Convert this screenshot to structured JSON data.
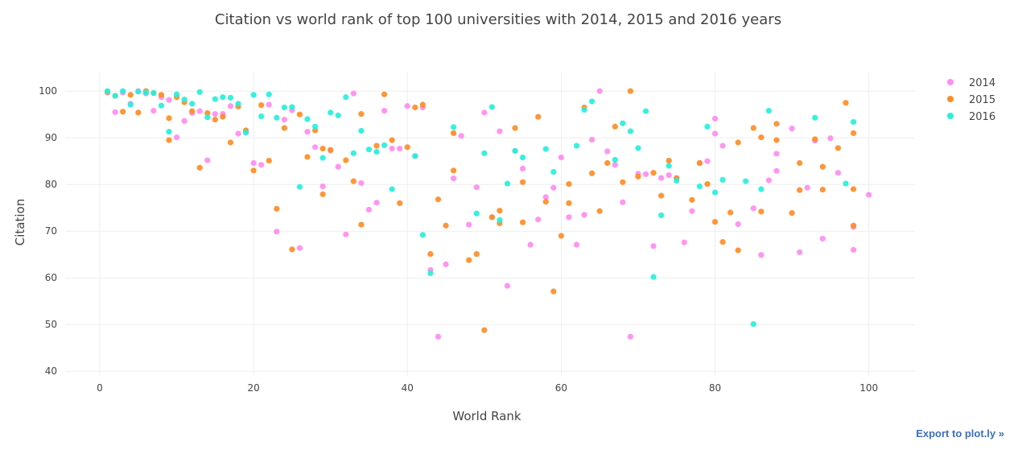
{
  "export_label": "Export to plot.ly »",
  "chart_data": {
    "type": "scatter",
    "title": "Citation vs world rank of top 100 universities with 2014, 2015 and 2016 years",
    "xlabel": "World Rank",
    "ylabel": "Citation",
    "xlim": [
      -4.5,
      106
    ],
    "ylim": [
      39,
      104
    ],
    "xticks": [
      0,
      20,
      40,
      60,
      80,
      100
    ],
    "yticks": [
      40,
      50,
      60,
      70,
      80,
      90,
      100
    ],
    "grid": true,
    "legend_position": "top-right",
    "series": [
      {
        "name": "2014",
        "color": "#ff8cf0",
        "x": [
          1,
          2,
          3,
          4,
          5,
          6,
          7,
          8,
          9,
          10,
          11,
          12,
          13,
          14,
          15,
          16,
          17,
          18,
          19,
          20,
          21,
          22,
          23,
          24,
          25,
          26,
          27,
          28,
          29,
          30,
          31,
          32,
          33,
          34,
          35,
          36,
          37,
          38,
          39,
          40,
          41,
          42,
          43,
          44,
          45,
          46,
          47,
          48,
          49,
          50,
          51,
          52,
          53,
          54,
          55,
          56,
          57,
          58,
          59,
          60,
          61,
          62,
          63,
          64,
          65,
          66,
          67,
          68,
          69,
          70,
          71,
          72,
          73,
          74,
          75,
          76,
          77,
          78,
          79,
          80,
          80,
          81,
          83,
          85,
          86,
          87,
          88,
          88,
          90,
          91,
          92,
          93,
          94,
          95,
          96,
          98,
          98,
          100
        ],
        "y": [
          99.7,
          95.5,
          99.7,
          97.3,
          100,
          99.5,
          95.8,
          98.7,
          98.1,
          90.1,
          93.6,
          95.3,
          95.7,
          85.2,
          95.1,
          95.1,
          96.8,
          90.9,
          91.3,
          84.6,
          84.2,
          97.1,
          69.9,
          93.9,
          95.9,
          66.4,
          91.3,
          88.0,
          79.6,
          87.3,
          83.8,
          69.3,
          99.5,
          80.3,
          74.6,
          76.1,
          95.8,
          87.7,
          87.7,
          96.8,
          86.1,
          96.5,
          61.7,
          47.4,
          62.9,
          81.3,
          90.4,
          71.4,
          79.4,
          95.4,
          73.0,
          91.4,
          58.3,
          87.2,
          83.4,
          67.1,
          72.5,
          77.3,
          79.3,
          85.8,
          73.0,
          67.1,
          73.5,
          89.6,
          100,
          87.1,
          84.2,
          76.2,
          47.4,
          82.3,
          82.2,
          66.8,
          81.4,
          82.0,
          81.4,
          67.6,
          74.3,
          84.6,
          85.0,
          94.1,
          90.9,
          88.3,
          71.5,
          74.9,
          64.9,
          80.9,
          86.6,
          82.9,
          92.0,
          65.5,
          79.3,
          89.4,
          68.4,
          89.9,
          82.5,
          66.0,
          70.9,
          77.8
        ]
      },
      {
        "name": "2015",
        "color": "#ff8c24",
        "x": [
          1,
          2,
          3,
          4,
          5,
          6,
          7,
          8,
          9,
          9,
          10,
          11,
          12,
          13,
          14,
          15,
          16,
          17,
          18,
          19,
          20,
          21,
          22,
          23,
          24,
          25,
          26,
          27,
          28,
          29,
          29,
          30,
          32,
          33,
          34,
          34,
          36,
          37,
          38,
          39,
          40,
          41,
          42,
          43,
          44,
          45,
          46,
          46,
          48,
          49,
          50,
          51,
          52,
          52,
          54,
          55,
          55,
          57,
          58,
          59,
          60,
          61,
          61,
          63,
          64,
          65,
          66,
          67,
          68,
          69,
          70,
          72,
          73,
          74,
          75,
          77,
          78,
          79,
          80,
          81,
          82,
          83,
          83,
          85,
          86,
          86,
          88,
          88,
          90,
          91,
          91,
          93,
          94,
          94,
          96,
          97,
          98,
          98,
          98
        ],
        "y": [
          99.8,
          99.0,
          95.6,
          99.2,
          95.4,
          100,
          99.6,
          99.2,
          94.2,
          89.5,
          98.7,
          97.6,
          95.7,
          83.6,
          95.3,
          93.9,
          94.5,
          89.0,
          96.7,
          91.6,
          83.0,
          97.0,
          85.1,
          74.8,
          92.1,
          66.1,
          95.0,
          85.9,
          91.6,
          87.7,
          77.9,
          87.4,
          85.2,
          80.7,
          95.1,
          71.4,
          88.3,
          99.3,
          89.5,
          76.0,
          88.0,
          96.5,
          97.1,
          65.1,
          76.8,
          71.2,
          91.0,
          83.0,
          63.8,
          65.1,
          48.8,
          73.0,
          74.4,
          71.7,
          92.1,
          80.5,
          71.9,
          94.5,
          76.3,
          57.1,
          69.0,
          80.1,
          76.0,
          96.5,
          82.4,
          74.3,
          84.6,
          92.4,
          80.5,
          100,
          81.7,
          82.5,
          77.6,
          85.1,
          81.3,
          76.7,
          84.6,
          80.1,
          72.0,
          67.7,
          74.0,
          89.0,
          65.9,
          92.1,
          74.2,
          90.1,
          93.0,
          89.5,
          73.9,
          78.8,
          84.6,
          89.7,
          83.8,
          78.9,
          87.8,
          97.5,
          91.0,
          71.2,
          79.0
        ]
      },
      {
        "name": "2016",
        "color": "#24f0dc",
        "x": [
          1,
          2,
          3,
          4,
          5,
          6,
          7,
          8,
          9,
          10,
          11,
          12,
          13,
          14,
          15,
          16,
          17,
          18,
          19,
          20,
          21,
          22,
          23,
          24,
          25,
          26,
          27,
          28,
          29,
          30,
          31,
          32,
          33,
          34,
          35,
          36,
          37,
          38,
          41,
          42,
          43,
          46,
          49,
          50,
          51,
          52,
          53,
          54,
          55,
          58,
          59,
          62,
          63,
          64,
          67,
          68,
          69,
          70,
          71,
          72,
          73,
          74,
          75,
          78,
          79,
          80,
          81,
          84,
          85,
          86,
          87,
          93,
          97,
          98
        ],
        "y": [
          100,
          99.0,
          100,
          97.1,
          99.9,
          99.7,
          99.6,
          96.9,
          91.3,
          99.3,
          98.2,
          97.3,
          99.8,
          94.4,
          98.3,
          98.7,
          98.6,
          97.3,
          91.1,
          99.2,
          94.6,
          99.3,
          94.3,
          96.5,
          96.6,
          79.5,
          94.0,
          92.4,
          85.7,
          95.4,
          94.8,
          98.7,
          86.7,
          91.5,
          87.5,
          87.0,
          88.4,
          79.0,
          86.1,
          69.2,
          61.0,
          92.3,
          73.8,
          86.7,
          96.6,
          72.4,
          80.2,
          87.2,
          85.8,
          87.6,
          82.7,
          88.3,
          96.0,
          97.8,
          85.3,
          93.1,
          91.4,
          87.8,
          95.7,
          60.2,
          73.4,
          84.0,
          80.8,
          79.6,
          92.4,
          78.3,
          81.0,
          80.7,
          50.1,
          79.0,
          95.8,
          94.3,
          80.2,
          93.4
        ]
      }
    ]
  }
}
